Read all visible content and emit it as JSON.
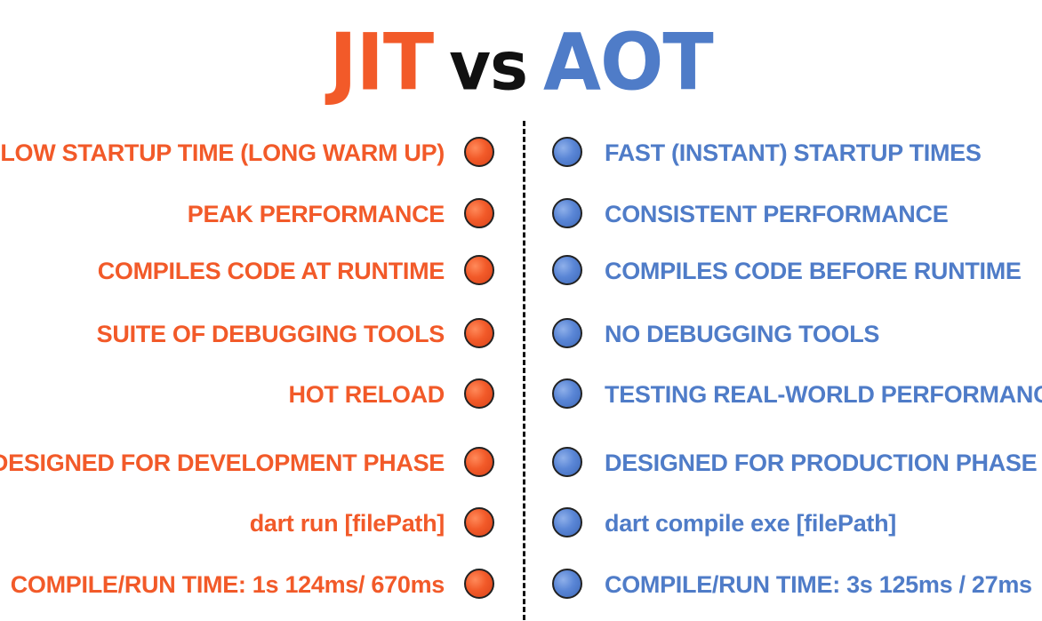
{
  "title": {
    "left": "JIT",
    "middle": "vs",
    "right": "AOT"
  },
  "colors": {
    "jit": "#f25a29",
    "aot": "#4f7cc8",
    "text_dark": "#111111"
  },
  "rows": [
    {
      "jit": "SLOW STARTUP TIME (LONG WARM UP)",
      "aot": "FAST (INSTANT) STARTUP TIMES"
    },
    {
      "jit": "PEAK PERFORMANCE",
      "aot": "CONSISTENT PERFORMANCE"
    },
    {
      "jit": "COMPILES CODE AT RUNTIME",
      "aot": "COMPILES CODE BEFORE RUNTIME"
    },
    {
      "jit": "SUITE OF DEBUGGING TOOLS",
      "aot": "NO DEBUGGING TOOLS"
    },
    {
      "jit": "HOT RELOAD",
      "aot": "TESTING REAL-WORLD PERFORMANCE"
    },
    {
      "jit": "DESIGNED FOR DEVELOPMENT PHASE",
      "aot": "DESIGNED FOR PRODUCTION PHASE"
    },
    {
      "jit": "dart run [filePath]",
      "aot": "dart compile exe [filePath]"
    },
    {
      "jit": "COMPILE/RUN TIME: 1s 124ms/ 670ms",
      "aot": "COMPILE/RUN TIME: 3s 125ms / 27ms"
    }
  ]
}
